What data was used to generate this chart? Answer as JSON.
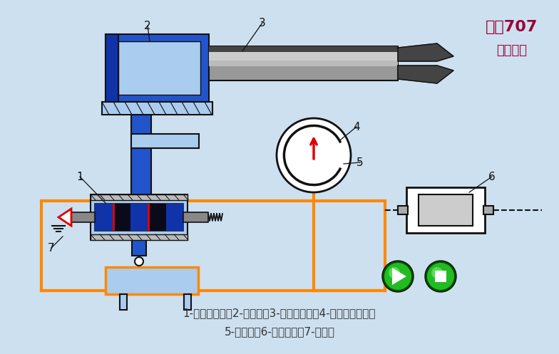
{
  "bg_color": "#cde0f0",
  "title_text1": "化工707",
  "title_text2": "剪辑制作",
  "title_color": "#990033",
  "caption_line1": "1-电液伺服阀；2-液压缸；3-机械手手臂；4-齿轮齿条机构；",
  "caption_line2": "5-电位器；6-步进电机；7-放大器",
  "caption_color": "#333333",
  "orange_color": "#FF8800",
  "blue_color": "#2255CC",
  "light_blue": "#88AADD",
  "lighter_blue": "#AACCEE",
  "dark_color": "#111111",
  "green_dark": "#005500",
  "green_mid": "#22BB22",
  "green_light": "#88FF88",
  "white": "#FFFFFF",
  "gray_rod": "#AAAAAA",
  "gray_dark": "#444444",
  "gray_mid": "#888888",
  "red_color": "#DD0000"
}
